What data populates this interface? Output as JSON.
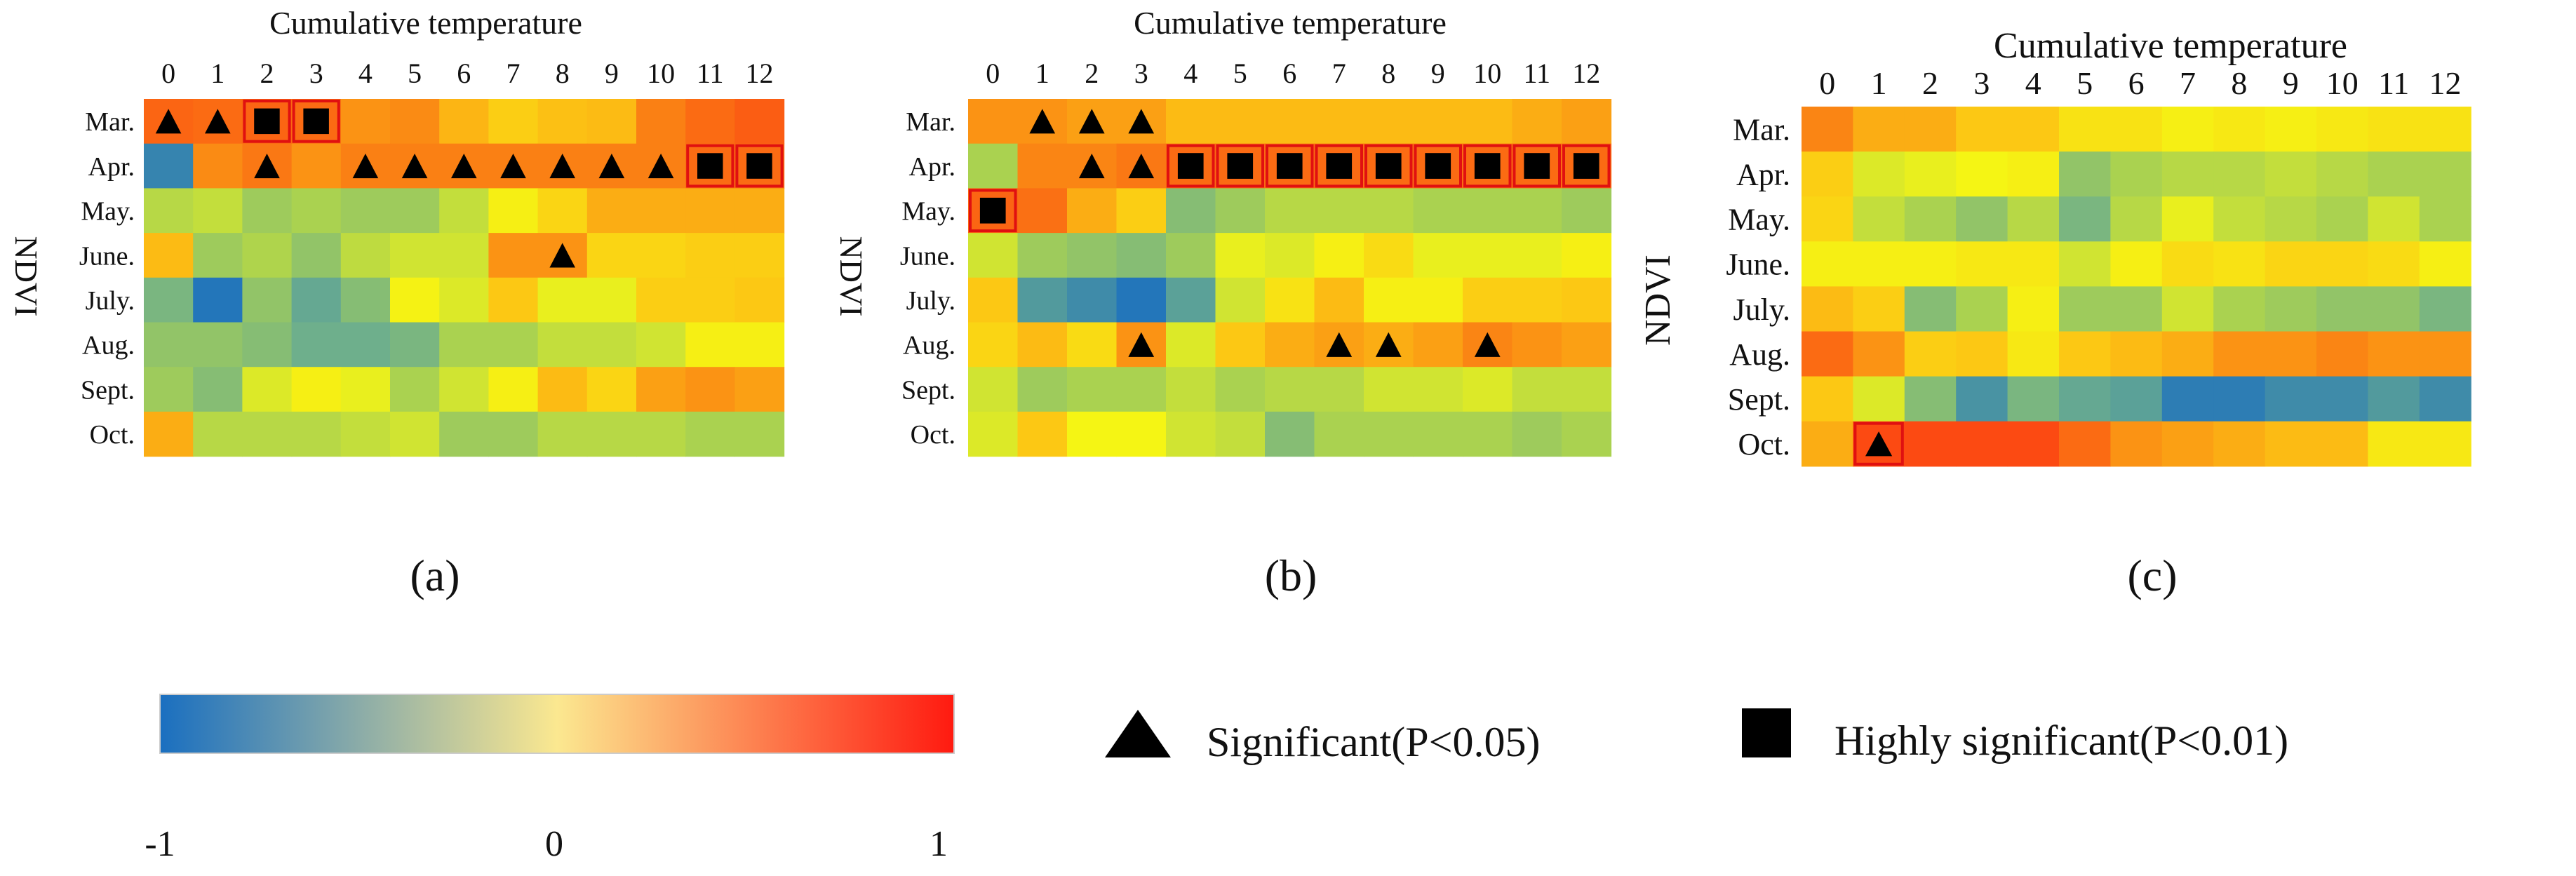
{
  "chart_data": [
    {
      "type": "heatmap",
      "panel_label": "(a)",
      "title": "Cumulative temperature",
      "ylabel": "NDVI",
      "x_ticks": [
        "0",
        "1",
        "2",
        "3",
        "4",
        "5",
        "6",
        "7",
        "8",
        "9",
        "10",
        "11",
        "12"
      ],
      "y_ticks": [
        "Mar.",
        "Apr.",
        "May.",
        "June.",
        "July.",
        "Aug.",
        "Sept.",
        "Oct."
      ],
      "value_range": [
        -1,
        1
      ],
      "values": [
        [
          0.72,
          0.7,
          0.72,
          0.7,
          0.55,
          0.58,
          0.42,
          0.3,
          0.38,
          0.4,
          0.62,
          0.7,
          0.75
        ],
        [
          -0.85,
          0.58,
          0.65,
          0.55,
          0.62,
          0.62,
          0.62,
          0.62,
          0.62,
          0.62,
          0.62,
          0.7,
          0.7
        ],
        [
          -0.25,
          -0.2,
          -0.35,
          -0.3,
          -0.35,
          -0.35,
          -0.2,
          0.05,
          0.25,
          0.45,
          0.45,
          0.45,
          0.45
        ],
        [
          0.4,
          -0.35,
          -0.28,
          -0.4,
          -0.22,
          -0.15,
          -0.15,
          0.55,
          0.55,
          0.25,
          0.25,
          0.3,
          0.3
        ],
        [
          -0.5,
          -0.95,
          -0.4,
          -0.6,
          -0.45,
          0.02,
          -0.1,
          0.35,
          -0.05,
          -0.05,
          0.3,
          0.3,
          0.35
        ],
        [
          -0.4,
          -0.4,
          -0.45,
          -0.55,
          -0.55,
          -0.5,
          -0.3,
          -0.3,
          -0.2,
          -0.2,
          -0.15,
          0.05,
          0.05
        ],
        [
          -0.35,
          -0.45,
          -0.1,
          0.05,
          -0.05,
          -0.3,
          -0.15,
          0.05,
          0.4,
          0.25,
          0.5,
          0.55,
          0.5
        ],
        [
          0.45,
          -0.25,
          -0.25,
          -0.25,
          -0.2,
          -0.15,
          -0.35,
          -0.35,
          -0.25,
          -0.25,
          -0.25,
          -0.3,
          -0.3
        ]
      ],
      "significant": [
        [
          0,
          0
        ],
        [
          0,
          1
        ],
        [
          1,
          2
        ],
        [
          1,
          4
        ],
        [
          1,
          5
        ],
        [
          1,
          6
        ],
        [
          1,
          7
        ],
        [
          1,
          8
        ],
        [
          1,
          9
        ],
        [
          1,
          10
        ],
        [
          3,
          8
        ]
      ],
      "highly_significant": [
        [
          0,
          2
        ],
        [
          0,
          3
        ],
        [
          1,
          11
        ],
        [
          1,
          12
        ]
      ]
    },
    {
      "type": "heatmap",
      "panel_label": "(b)",
      "title": "Cumulative temperature",
      "ylabel": "NDVI",
      "x_ticks": [
        "0",
        "1",
        "2",
        "3",
        "4",
        "5",
        "6",
        "7",
        "8",
        "9",
        "10",
        "11",
        "12"
      ],
      "y_ticks": [
        "Mar.",
        "Apr.",
        "May.",
        "June.",
        "July.",
        "Aug.",
        "Sept.",
        "Oct."
      ],
      "value_range": [
        -1,
        1
      ],
      "values": [
        [
          0.55,
          0.55,
          0.5,
          0.5,
          0.4,
          0.4,
          0.4,
          0.4,
          0.4,
          0.4,
          0.4,
          0.45,
          0.5
        ],
        [
          -0.3,
          0.6,
          0.6,
          0.65,
          0.7,
          0.7,
          0.7,
          0.7,
          0.7,
          0.7,
          0.7,
          0.7,
          0.7
        ],
        [
          0.72,
          0.68,
          0.45,
          0.3,
          -0.45,
          -0.35,
          -0.25,
          -0.25,
          -0.25,
          -0.3,
          -0.3,
          -0.3,
          -0.35
        ],
        [
          -0.15,
          -0.35,
          -0.4,
          -0.45,
          -0.35,
          -0.05,
          -0.1,
          0.05,
          0.2,
          -0.05,
          -0.05,
          -0.05,
          0.05
        ],
        [
          0.35,
          -0.7,
          -0.8,
          -0.95,
          -0.65,
          -0.15,
          0.15,
          0.4,
          0.05,
          0.05,
          0.3,
          0.3,
          0.35
        ],
        [
          0.25,
          0.4,
          0.2,
          0.55,
          -0.1,
          0.35,
          0.45,
          0.5,
          0.45,
          0.5,
          0.6,
          0.55,
          0.5
        ],
        [
          -0.15,
          -0.35,
          -0.3,
          -0.3,
          -0.2,
          -0.3,
          -0.25,
          -0.25,
          -0.15,
          -0.15,
          -0.1,
          -0.2,
          -0.2
        ],
        [
          -0.1,
          0.35,
          0.0,
          0.0,
          -0.15,
          -0.2,
          -0.45,
          -0.3,
          -0.3,
          -0.3,
          -0.3,
          -0.35,
          -0.3
        ]
      ],
      "significant": [
        [
          0,
          1
        ],
        [
          0,
          2
        ],
        [
          0,
          3
        ],
        [
          1,
          2
        ],
        [
          1,
          3
        ],
        [
          5,
          3
        ],
        [
          5,
          7
        ],
        [
          5,
          8
        ],
        [
          5,
          10
        ]
      ],
      "highly_significant": [
        [
          1,
          4
        ],
        [
          1,
          5
        ],
        [
          1,
          6
        ],
        [
          1,
          7
        ],
        [
          1,
          8
        ],
        [
          1,
          9
        ],
        [
          1,
          10
        ],
        [
          1,
          11
        ],
        [
          1,
          12
        ],
        [
          2,
          0
        ]
      ]
    },
    {
      "type": "heatmap",
      "panel_label": "(c)",
      "title": "Cumulative temperature",
      "ylabel": "NDVI",
      "x_ticks": [
        "0",
        "1",
        "2",
        "3",
        "4",
        "5",
        "6",
        "7",
        "8",
        "9",
        "10",
        "11",
        "12"
      ],
      "y_ticks": [
        "Mar.",
        "Apr.",
        "May.",
        "June.",
        "July.",
        "Aug.",
        "Sept.",
        "Oct."
      ],
      "value_range": [
        -1,
        1
      ],
      "values": [
        [
          0.6,
          0.45,
          0.45,
          0.35,
          0.35,
          0.15,
          0.15,
          0.05,
          0.1,
          0.05,
          0.1,
          0.15,
          0.15
        ],
        [
          0.3,
          -0.1,
          -0.05,
          0.0,
          0.05,
          -0.4,
          -0.3,
          -0.25,
          -0.25,
          -0.2,
          -0.25,
          -0.3,
          -0.3
        ],
        [
          0.25,
          -0.2,
          -0.3,
          -0.4,
          -0.25,
          -0.5,
          -0.25,
          -0.05,
          -0.2,
          -0.25,
          -0.3,
          -0.15,
          -0.3
        ],
        [
          0.05,
          0.05,
          0.05,
          0.1,
          0.1,
          -0.15,
          0.05,
          0.2,
          0.15,
          0.25,
          0.25,
          0.2,
          0.05
        ],
        [
          0.4,
          0.3,
          -0.45,
          -0.3,
          0.05,
          -0.35,
          -0.35,
          -0.15,
          -0.3,
          -0.35,
          -0.4,
          -0.4,
          -0.5
        ],
        [
          0.7,
          0.55,
          0.3,
          0.35,
          0.1,
          0.35,
          0.4,
          0.45,
          0.55,
          0.55,
          0.6,
          0.55,
          0.55
        ],
        [
          0.35,
          -0.1,
          -0.45,
          -0.75,
          -0.5,
          -0.6,
          -0.65,
          -0.9,
          -0.9,
          -0.8,
          -0.8,
          -0.7,
          -0.8
        ],
        [
          0.45,
          0.82,
          0.82,
          0.82,
          0.82,
          0.7,
          0.55,
          0.5,
          0.45,
          0.4,
          0.4,
          0.1,
          0.1
        ]
      ],
      "significant": [
        [
          7,
          1
        ]
      ],
      "highly_significant": []
    }
  ],
  "legend": {
    "colorbar_ticks": [
      "-1",
      "0",
      "1"
    ],
    "significant_label": "Significant(P<0.05)",
    "highly_significant_label": "Highly significant(P<0.01)"
  }
}
